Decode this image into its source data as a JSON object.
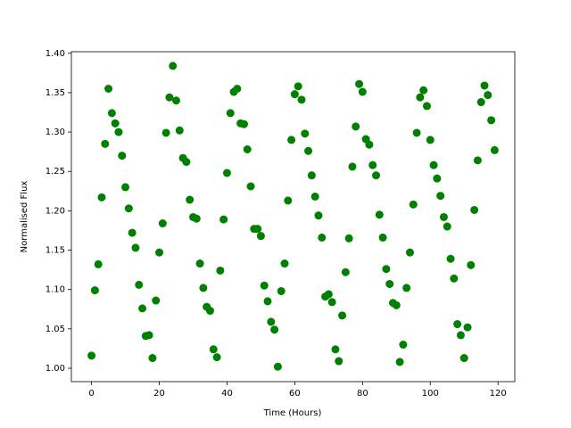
{
  "chart_data": {
    "type": "scatter",
    "x_label": "Time (Hours)",
    "y_label": "Normalised Flux",
    "color": "#008000",
    "x": [
      0,
      1,
      2,
      3,
      4,
      5,
      6,
      7,
      8,
      9,
      10,
      11,
      12,
      13,
      14,
      15,
      16,
      17,
      18,
      19,
      20,
      21,
      22,
      23,
      24,
      25,
      26,
      27,
      28,
      29,
      30,
      31,
      32,
      33,
      34,
      35,
      36,
      37,
      38,
      39,
      40,
      41,
      42,
      43,
      44,
      45,
      46,
      47,
      48,
      49,
      50,
      51,
      52,
      53,
      54,
      55,
      56,
      57,
      58,
      59,
      60,
      61,
      62,
      63,
      64,
      65,
      66,
      67,
      68,
      69,
      70,
      71,
      72,
      73,
      74,
      75,
      76,
      77,
      78,
      79,
      80,
      81,
      82,
      83,
      84,
      85,
      86,
      87,
      88,
      89,
      90,
      91,
      92,
      93,
      94,
      95,
      96,
      97,
      98,
      99,
      100,
      101,
      102,
      103,
      104,
      105,
      106,
      107,
      108,
      109,
      110,
      111,
      112,
      113,
      114,
      115,
      116,
      117,
      118,
      119
    ],
    "values": [
      1.016,
      1.099,
      1.132,
      1.217,
      1.285,
      1.355,
      1.324,
      1.311,
      1.3,
      1.27,
      1.23,
      1.203,
      1.172,
      1.153,
      1.106,
      1.076,
      1.041,
      1.042,
      1.013,
      1.086,
      1.147,
      1.184,
      1.299,
      1.344,
      1.384,
      1.34,
      1.302,
      1.267,
      1.262,
      1.214,
      1.192,
      1.19,
      1.133,
      1.102,
      1.078,
      1.073,
      1.024,
      1.014,
      1.124,
      1.189,
      1.248,
      1.324,
      1.351,
      1.355,
      1.311,
      1.31,
      1.278,
      1.231,
      1.177,
      1.177,
      1.168,
      1.105,
      1.085,
      1.059,
      1.049,
      1.002,
      1.098,
      1.133,
      1.213,
      1.29,
      1.348,
      1.358,
      1.341,
      1.298,
      1.276,
      1.245,
      1.218,
      1.194,
      1.166,
      1.091,
      1.094,
      1.084,
      1.024,
      1.009,
      1.067,
      1.122,
      1.165,
      1.256,
      1.307,
      1.361,
      1.351,
      1.291,
      1.284,
      1.258,
      1.245,
      1.195,
      1.166,
      1.126,
      1.107,
      1.083,
      1.08,
      1.008,
      1.03,
      1.102,
      1.147,
      1.208,
      1.299,
      1.344,
      1.353,
      1.333,
      1.29,
      1.258,
      1.241,
      1.219,
      1.192,
      1.18,
      1.139,
      1.114,
      1.056,
      1.042,
      1.013,
      1.052,
      1.131,
      1.201,
      1.264,
      1.338,
      1.359,
      1.347,
      1.315,
      1.277
    ],
    "xlim": [
      -5.95,
      124.95
    ],
    "xticks": [
      0,
      20,
      40,
      60,
      80,
      100,
      120
    ],
    "ylim": [
      0.983,
      1.402
    ],
    "yticks": [
      {
        "value": 1,
        "label": "1.00"
      },
      1.05,
      {
        "value": 1.1,
        "label": "1.10"
      },
      1.15,
      {
        "value": 1.2,
        "label": "1.20"
      },
      1.25,
      {
        "value": 1.3,
        "label": "1.30"
      },
      1.35,
      {
        "value": 1.4,
        "label": "1.40"
      }
    ],
    "grid": false
  }
}
